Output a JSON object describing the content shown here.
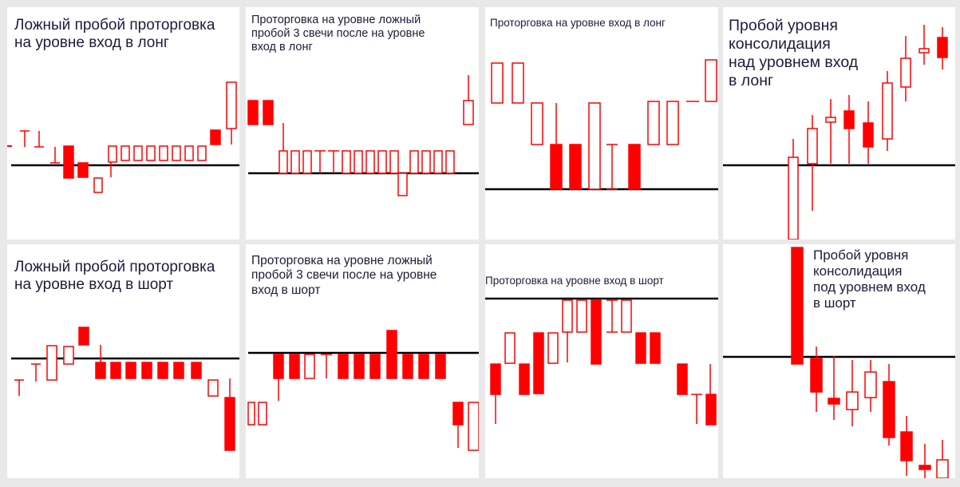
{
  "colors": {
    "candle": "#ff0000",
    "level": "#000000",
    "background": "#ffffff",
    "frame": "#e9e9e9",
    "text": "#1c1c3a"
  },
  "panels": [
    {
      "title": "Ложный пробой проторговка\nна уровне вход в лонг"
    },
    {
      "title": "Проторговка на уровне ложный\nпробой 3 свечи после на уровне\nвход в лонг"
    },
    {
      "title": "Проторговка на уровне вход в лонг"
    },
    {
      "title": "Пробой уровня\nконсолидация\nнад уровнем вход\n в лонг"
    },
    {
      "title": "Ложный пробой проторговка\nна уровне вход в шорт"
    },
    {
      "title": "Проторговка на уровне ложный\nпробой 3 свечи после на уровне\nвход в шорт"
    },
    {
      "title": "Проторговка на уровне вход в шорт"
    },
    {
      "title": "Пробой уровня\nконсолидация\nпод уровнем вход\n в шорт"
    }
  ]
}
